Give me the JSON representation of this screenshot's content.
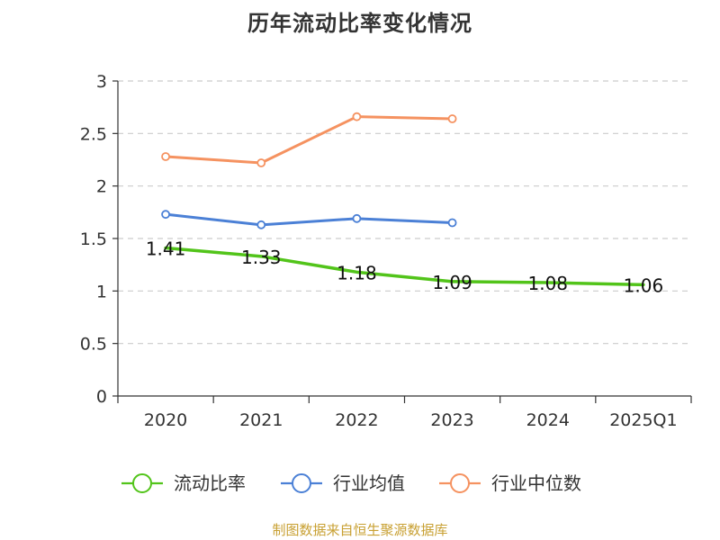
{
  "colors": {
    "series": [
      "#52c41a",
      "#4b80d6",
      "#f59260"
    ],
    "grid": "#cccccc",
    "axis": "#333333",
    "source_note": "#c8a032"
  },
  "chart_data": {
    "type": "line",
    "title": "历年流动比率变化情况",
    "xlabel": "",
    "ylabel": "",
    "categories": [
      "2020",
      "2021",
      "2022",
      "2023",
      "2024",
      "2025Q1"
    ],
    "ylim": [
      0,
      3
    ],
    "yticks": [
      "0",
      "0.5",
      "1",
      "1.5",
      "2",
      "2.5",
      "3"
    ],
    "grid": true,
    "legend_position": "bottom",
    "series": [
      {
        "name": "流动比率",
        "values": [
          1.41,
          1.33,
          1.18,
          1.09,
          1.08,
          1.06
        ],
        "labels": [
          "1.41",
          "1.33",
          "1.18",
          "1.09",
          "1.08",
          "1.06"
        ]
      },
      {
        "name": "行业均值",
        "values": [
          1.73,
          1.63,
          1.69,
          1.65,
          null,
          null
        ]
      },
      {
        "name": "行业中位数",
        "values": [
          2.28,
          2.22,
          2.66,
          2.64,
          null,
          null
        ]
      }
    ]
  },
  "source_note": "制图数据来自恒生聚源数据库"
}
